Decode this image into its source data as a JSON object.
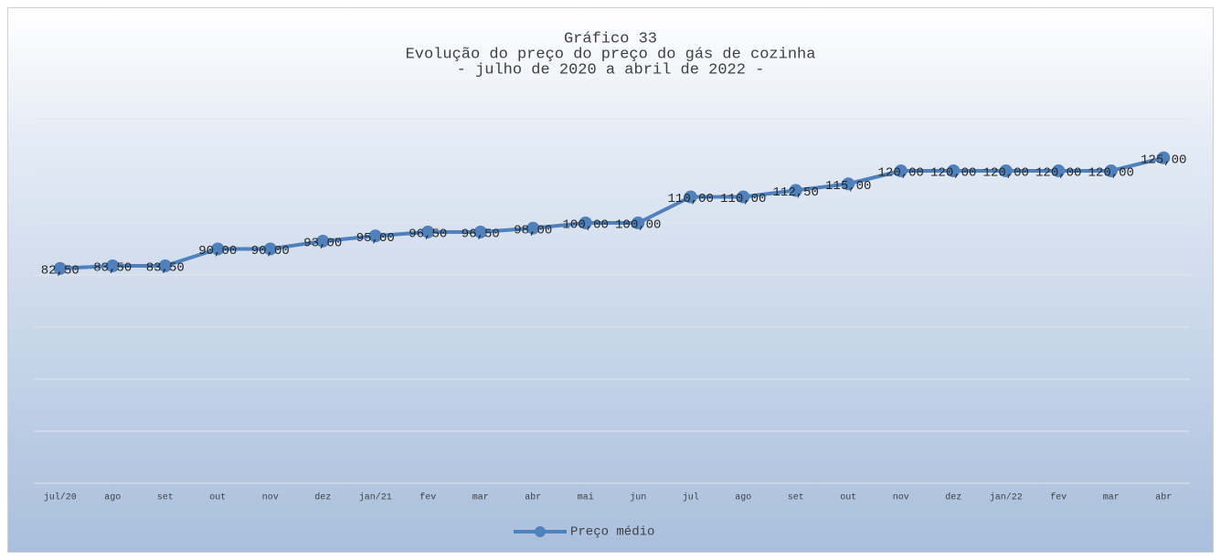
{
  "chart_data": {
    "type": "line",
    "title": [
      "Gráfico 33",
      "Evolução do preço do preço do gás de cozinha",
      "- julho de 2020 a abril de 2022 -"
    ],
    "categories": [
      "jul/20",
      "ago",
      "set",
      "out",
      "nov",
      "dez",
      "jan/21",
      "fev",
      "mar",
      "abr",
      "mai",
      "jun",
      "jul",
      "ago",
      "set",
      "out",
      "nov",
      "dez",
      "jan/22",
      "fev",
      "mar",
      "abr"
    ],
    "series": [
      {
        "name": "Preço médio",
        "color": "#4f81bd",
        "values": [
          82.5,
          83.5,
          83.5,
          90,
          90,
          93,
          95,
          96.5,
          96.5,
          98,
          100,
          100,
          110,
          110,
          112.5,
          115,
          120,
          120,
          120,
          120,
          120,
          125
        ],
        "value_labels": [
          "82,50",
          "83,50",
          "83,50",
          "90,00",
          "90,00",
          "93,00",
          "95,00",
          "96,50",
          "96,50",
          "98,00",
          "100,00",
          "100,00",
          "110,00",
          "110,00",
          "112,50",
          "115,00",
          "120,00",
          "120,00",
          "120,00",
          "120,00",
          "120,00",
          "125,00"
        ]
      }
    ],
    "ylim": [
      0,
      140
    ],
    "yticks": [
      0,
      20,
      40,
      60,
      80,
      100,
      120,
      140
    ],
    "grid": true,
    "legend": "bottom"
  }
}
